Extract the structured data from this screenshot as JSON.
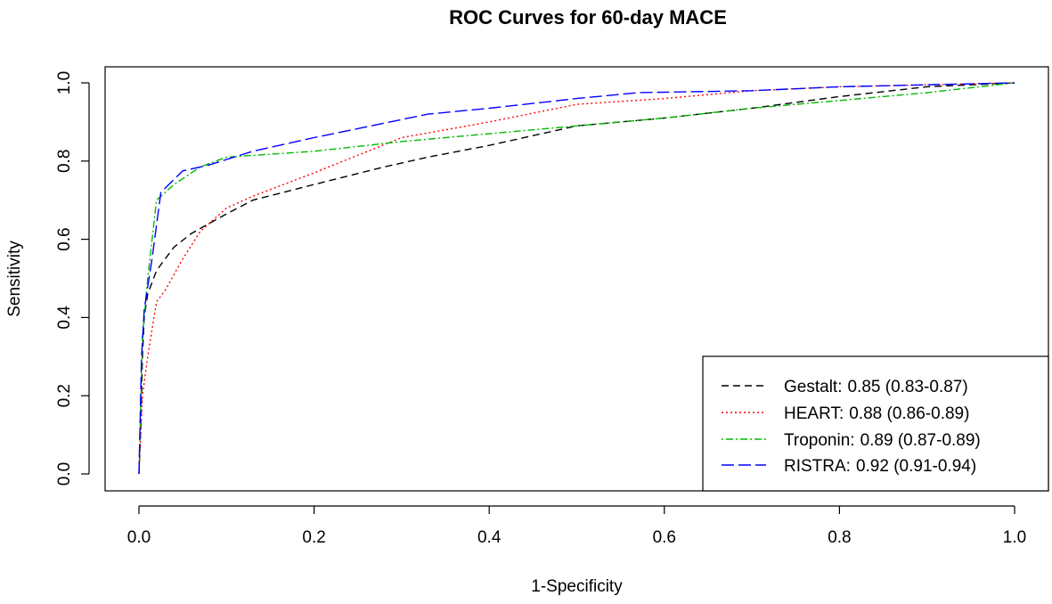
{
  "chart_data": {
    "type": "line",
    "title": "ROC Curves for 60-day MACE",
    "xlabel": "1-Specificity",
    "ylabel": "Sensitivity",
    "xlim": [
      0,
      1
    ],
    "ylim": [
      0,
      1
    ],
    "x_ticks": [
      0.0,
      0.2,
      0.4,
      0.6,
      0.8,
      1.0
    ],
    "y_ticks": [
      0.0,
      0.2,
      0.4,
      0.6,
      0.8,
      1.0
    ],
    "x_tick_labels": [
      "0.0",
      "0.2",
      "0.4",
      "0.6",
      "0.8",
      "1.0"
    ],
    "y_tick_labels": [
      "0.0",
      "0.2",
      "0.4",
      "0.6",
      "0.8",
      "1.0"
    ],
    "grid": false,
    "legend_position": "bottom-right",
    "series": [
      {
        "name": "Gestalt",
        "legend_label": "Gestalt:",
        "legend_value": "0.85 (0.83-0.87)",
        "color": "#000000",
        "line_style": "dashed",
        "points": [
          [
            0.0,
            0.0
          ],
          [
            0.002,
            0.12
          ],
          [
            0.004,
            0.3
          ],
          [
            0.006,
            0.4
          ],
          [
            0.01,
            0.46
          ],
          [
            0.02,
            0.52
          ],
          [
            0.04,
            0.58
          ],
          [
            0.06,
            0.615
          ],
          [
            0.08,
            0.64
          ],
          [
            0.1,
            0.665
          ],
          [
            0.13,
            0.7
          ],
          [
            0.2,
            0.74
          ],
          [
            0.28,
            0.785
          ],
          [
            0.33,
            0.81
          ],
          [
            0.4,
            0.84
          ],
          [
            0.5,
            0.89
          ],
          [
            0.6,
            0.91
          ],
          [
            0.7,
            0.935
          ],
          [
            0.8,
            0.965
          ],
          [
            0.9,
            0.99
          ],
          [
            1.0,
            1.0
          ]
        ]
      },
      {
        "name": "HEART",
        "legend_label": "HEART:",
        "legend_value": "0.88 (0.86-0.89)",
        "color": "#ff0000",
        "line_style": "dotted",
        "points": [
          [
            0.0,
            0.0
          ],
          [
            0.004,
            0.2
          ],
          [
            0.01,
            0.3
          ],
          [
            0.02,
            0.44
          ],
          [
            0.03,
            0.47
          ],
          [
            0.05,
            0.55
          ],
          [
            0.07,
            0.62
          ],
          [
            0.1,
            0.68
          ],
          [
            0.13,
            0.71
          ],
          [
            0.2,
            0.77
          ],
          [
            0.3,
            0.86
          ],
          [
            0.4,
            0.9
          ],
          [
            0.5,
            0.945
          ],
          [
            0.6,
            0.96
          ],
          [
            0.7,
            0.98
          ],
          [
            0.8,
            0.99
          ],
          [
            0.9,
            0.995
          ],
          [
            1.0,
            1.0
          ]
        ]
      },
      {
        "name": "Troponin",
        "legend_label": "Troponin:",
        "legend_value": "0.89 (0.87-0.89)",
        "color": "#00bb00",
        "line_style": "dashdot",
        "points": [
          [
            0.0,
            0.0
          ],
          [
            0.004,
            0.35
          ],
          [
            0.01,
            0.5
          ],
          [
            0.02,
            0.7
          ],
          [
            0.04,
            0.74
          ],
          [
            0.07,
            0.785
          ],
          [
            0.1,
            0.81
          ],
          [
            0.2,
            0.825
          ],
          [
            0.3,
            0.85
          ],
          [
            0.4,
            0.87
          ],
          [
            0.5,
            0.89
          ],
          [
            0.6,
            0.91
          ],
          [
            0.7,
            0.935
          ],
          [
            0.8,
            0.955
          ],
          [
            0.9,
            0.975
          ],
          [
            1.0,
            1.0
          ]
        ]
      },
      {
        "name": "RISTRA",
        "legend_label": "RISTRA:",
        "legend_value": "0.92 (0.91-0.94)",
        "color": "#0000ff",
        "line_style": "longdash",
        "points": [
          [
            0.0,
            0.0
          ],
          [
            0.003,
            0.3
          ],
          [
            0.006,
            0.42
          ],
          [
            0.015,
            0.55
          ],
          [
            0.025,
            0.72
          ],
          [
            0.05,
            0.775
          ],
          [
            0.08,
            0.79
          ],
          [
            0.13,
            0.825
          ],
          [
            0.2,
            0.86
          ],
          [
            0.33,
            0.92
          ],
          [
            0.4,
            0.935
          ],
          [
            0.5,
            0.96
          ],
          [
            0.57,
            0.975
          ],
          [
            0.7,
            0.98
          ],
          [
            0.8,
            0.99
          ],
          [
            0.9,
            0.995
          ],
          [
            1.0,
            1.0
          ]
        ]
      }
    ]
  }
}
